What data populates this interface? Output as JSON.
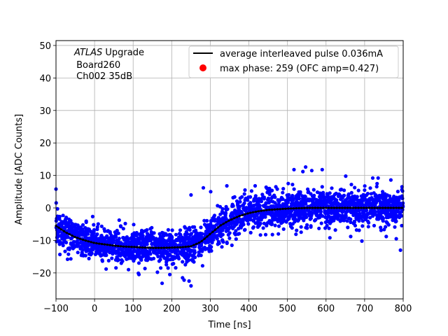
{
  "chart_data": {
    "type": "scatter",
    "xlabel": "Time [ns]",
    "ylabel": "Amplitude [ADC Counts]",
    "xlim": [
      -100,
      800
    ],
    "ylim": [
      -28,
      51.5
    ],
    "x_ticks": [
      -100,
      0,
      100,
      200,
      300,
      400,
      500,
      600,
      700,
      800
    ],
    "y_ticks": [
      -20,
      -10,
      0,
      10,
      20,
      30,
      40,
      50
    ],
    "grid": true,
    "legend_position": "top-right",
    "annotation": {
      "atlas": "ATLAS",
      "upgrade": " Upgrade",
      "board": " Board260",
      "channel": " Ch002 35dB"
    },
    "colors": {
      "scatter": "#0000ff",
      "average": "#000000",
      "max_phase": "#ff0000",
      "grid": "#b0b0b0"
    },
    "series": [
      {
        "name": "average interleaved pulse 0.036mA",
        "kind": "line",
        "x": [
          -100,
          -75,
          -50,
          -25,
          0,
          25,
          50,
          75,
          100,
          125,
          150,
          175,
          200,
          225,
          250,
          275,
          300,
          325,
          350,
          375,
          400,
          425,
          450,
          475,
          500,
          550,
          600,
          650,
          700,
          750,
          800
        ],
        "y": [
          -5.5,
          -7.5,
          -9,
          -10,
          -10.8,
          -11.2,
          -11.6,
          -11.9,
          -12,
          -12.2,
          -12.3,
          -12.3,
          -12.2,
          -12.1,
          -11.8,
          -10.5,
          -8,
          -5.5,
          -3.8,
          -2.5,
          -1.6,
          -1,
          -0.6,
          -0.4,
          -0.2,
          0,
          0,
          0,
          0,
          0,
          0
        ]
      },
      {
        "name": "max phase: 259 (OFC amp=0.427)",
        "kind": "marker",
        "x": [],
        "y": []
      }
    ],
    "scatter_band": {
      "description_values": "sample spread around average pulse",
      "spread_sd": 2.6,
      "outliers": [
        {
          "x": -100,
          "y": 5.8
        },
        {
          "x": 30,
          "y": -18.8
        },
        {
          "x": 55,
          "y": -16
        },
        {
          "x": 88,
          "y": -19
        },
        {
          "x": 115,
          "y": -20.5
        },
        {
          "x": 163,
          "y": -19.8
        },
        {
          "x": 175,
          "y": -23.2
        },
        {
          "x": 228,
          "y": -21.5
        },
        {
          "x": 250,
          "y": -24
        },
        {
          "x": 245,
          "y": -22.5
        },
        {
          "x": 232,
          "y": -22.2
        },
        {
          "x": 195,
          "y": -20.5
        },
        {
          "x": 250,
          "y": 4
        },
        {
          "x": 282,
          "y": 6.2
        },
        {
          "x": 301,
          "y": 5
        },
        {
          "x": 343,
          "y": 6.8
        },
        {
          "x": 390,
          "y": 5.5
        },
        {
          "x": 407,
          "y": 5.2
        },
        {
          "x": 461,
          "y": -8.2
        },
        {
          "x": 470,
          "y": 6.5
        },
        {
          "x": 502,
          "y": 7.5
        },
        {
          "x": 517,
          "y": 11.8
        },
        {
          "x": 547,
          "y": 12.6
        },
        {
          "x": 540,
          "y": 11.2
        },
        {
          "x": 563,
          "y": 11.5
        },
        {
          "x": 590,
          "y": 11.8
        },
        {
          "x": 590,
          "y": 6.5
        },
        {
          "x": 651,
          "y": 9.8
        },
        {
          "x": 664,
          "y": -8.8
        },
        {
          "x": 721,
          "y": 9.2
        },
        {
          "x": 735,
          "y": 9.2
        },
        {
          "x": 756,
          "y": -8.8
        },
        {
          "x": 768,
          "y": 8.6
        },
        {
          "x": 797,
          "y": 6.5
        },
        {
          "x": 793,
          "y": -13
        },
        {
          "x": 782,
          "y": -9.5
        },
        {
          "x": 693,
          "y": -10.2
        },
        {
          "x": 610,
          "y": -9.2
        },
        {
          "x": 356,
          "y": -11.5
        },
        {
          "x": 330,
          "y": -12
        }
      ]
    }
  }
}
